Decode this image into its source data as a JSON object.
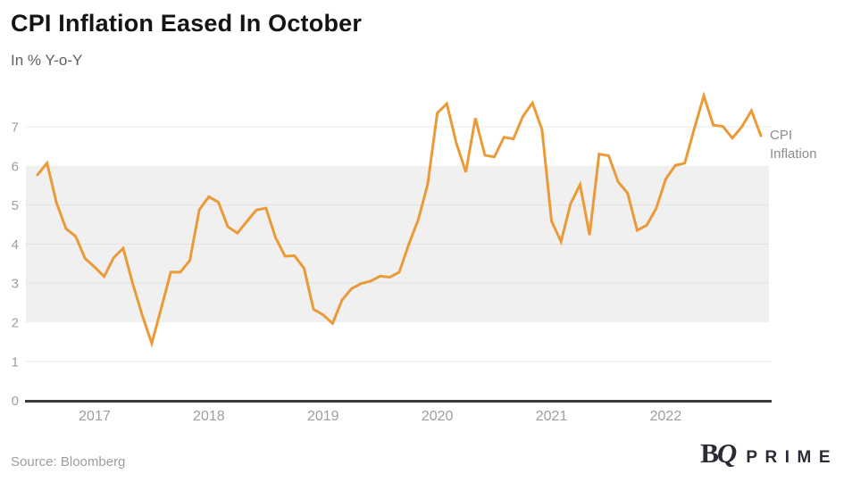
{
  "header": {
    "title": "CPI Inflation Eased In October",
    "subtitle": "In % Y-o-Y"
  },
  "chart_data": {
    "type": "line",
    "title": "CPI Inflation Eased In October",
    "ylabel": "In % Y-o-Y",
    "x_tick_labels": [
      "2017",
      "2018",
      "2019",
      "2020",
      "2021",
      "2022"
    ],
    "y_ticks": [
      0,
      1,
      2,
      3,
      4,
      5,
      6,
      7
    ],
    "ylim": [
      0,
      8
    ],
    "grid": "horizontal",
    "band": {
      "from": 2,
      "to": 6,
      "color": "#F0F0F0"
    },
    "x": [
      "2016-06",
      "2016-07",
      "2016-08",
      "2016-09",
      "2016-10",
      "2016-11",
      "2016-12",
      "2017-01",
      "2017-02",
      "2017-03",
      "2017-04",
      "2017-05",
      "2017-06",
      "2017-07",
      "2017-08",
      "2017-09",
      "2017-10",
      "2017-11",
      "2017-12",
      "2018-01",
      "2018-02",
      "2018-03",
      "2018-04",
      "2018-05",
      "2018-06",
      "2018-07",
      "2018-08",
      "2018-09",
      "2018-10",
      "2018-11",
      "2018-12",
      "2019-01",
      "2019-02",
      "2019-03",
      "2019-04",
      "2019-05",
      "2019-06",
      "2019-07",
      "2019-08",
      "2019-09",
      "2019-10",
      "2019-11",
      "2019-12",
      "2020-01",
      "2020-02",
      "2020-03",
      "2020-04",
      "2020-05",
      "2020-06",
      "2020-07",
      "2020-08",
      "2020-09",
      "2020-10",
      "2020-11",
      "2020-12",
      "2021-01",
      "2021-02",
      "2021-03",
      "2021-04",
      "2021-05",
      "2021-06",
      "2021-07",
      "2021-08",
      "2021-09",
      "2021-10",
      "2021-11",
      "2021-12",
      "2022-01",
      "2022-02",
      "2022-03",
      "2022-04",
      "2022-05",
      "2022-06",
      "2022-07",
      "2022-08",
      "2022-09",
      "2022-10"
    ],
    "series": [
      {
        "name": "CPI Inflation",
        "color": "#EB9A38",
        "values": [
          5.77,
          6.07,
          5.05,
          4.39,
          4.2,
          3.63,
          3.41,
          3.17,
          3.65,
          3.89,
          2.99,
          2.18,
          1.46,
          2.36,
          3.28,
          3.28,
          3.58,
          4.88,
          5.21,
          5.07,
          4.44,
          4.28,
          4.58,
          4.87,
          4.92,
          4.17,
          3.69,
          3.7,
          3.38,
          2.33,
          2.19,
          1.97,
          2.57,
          2.86,
          2.99,
          3.05,
          3.18,
          3.15,
          3.28,
          3.99,
          4.62,
          5.54,
          7.35,
          7.59,
          6.58,
          5.84,
          7.22,
          6.27,
          6.23,
          6.73,
          6.69,
          7.27,
          7.61,
          6.93,
          4.59,
          4.06,
          5.03,
          5.52,
          4.23,
          6.3,
          6.26,
          5.59,
          5.3,
          4.35,
          4.48,
          4.91,
          5.66,
          6.01,
          6.07,
          6.95,
          7.79,
          7.04,
          7.01,
          6.71,
          7.0,
          7.41,
          6.77
        ]
      }
    ],
    "annotation": "CPI Inflation",
    "legend_position": "right-edge-of-line"
  },
  "annotation": {
    "series_label": "CPI Inflation"
  },
  "footer": {
    "source": "Source: Bloomberg",
    "logo": {
      "b": "B",
      "q": "Q",
      "prime": "PRIME"
    }
  },
  "colors": {
    "line": "#EB9A38",
    "band": "#F0F0F0",
    "grid_light": "#E8E8E8",
    "grid_band": "#E2E2E2",
    "axis": "#3A3A3E",
    "tick_label": "#9E9E9E",
    "logo": "#2B2B35"
  }
}
